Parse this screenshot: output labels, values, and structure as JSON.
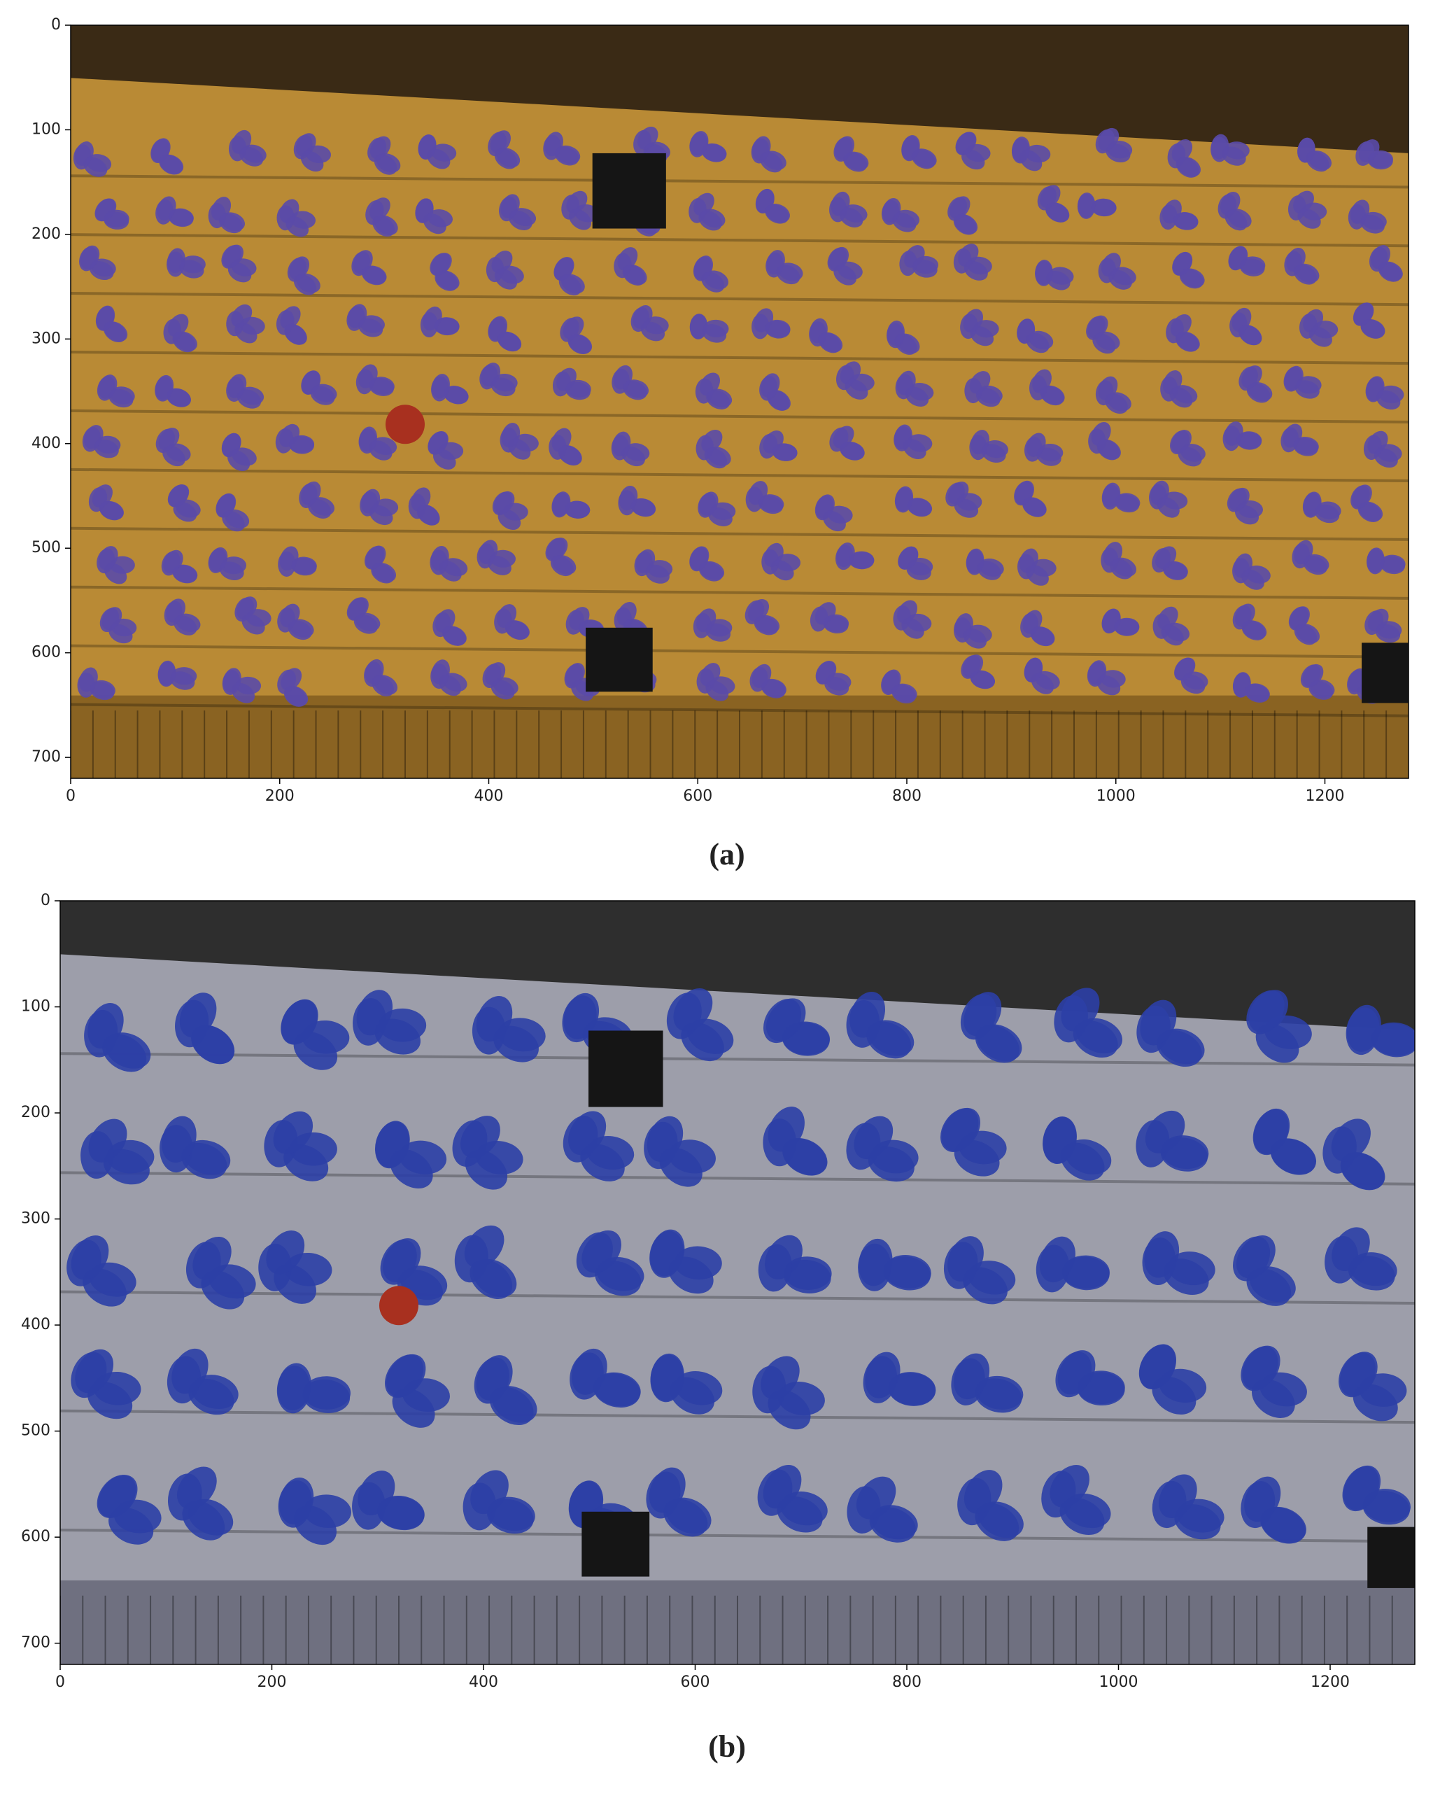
{
  "chart_data": [
    {
      "type": "image",
      "caption": "(a)",
      "xlim": [
        0,
        1280
      ],
      "ylim": [
        720,
        0
      ],
      "xticks": [
        0,
        200,
        400,
        600,
        800,
        1000,
        1200
      ],
      "yticks": [
        0,
        100,
        200,
        300,
        400,
        500,
        600,
        700
      ]
    },
    {
      "type": "image",
      "caption": "(b)",
      "xlim": [
        0,
        1280
      ],
      "ylim": [
        720,
        0
      ],
      "xticks": [
        0,
        200,
        400,
        600,
        800,
        1000,
        1200
      ],
      "yticks": [
        0,
        100,
        200,
        300,
        400,
        500,
        600,
        700
      ]
    }
  ]
}
